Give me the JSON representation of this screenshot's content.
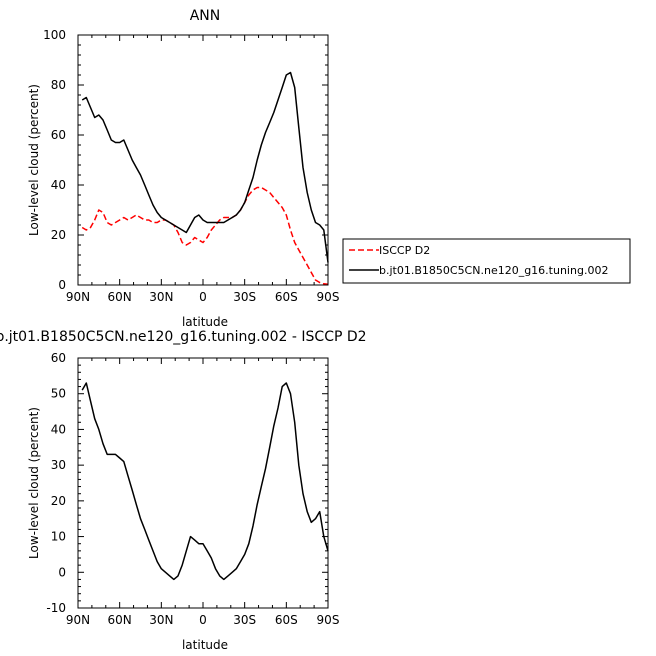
{
  "chart_data": [
    {
      "type": "line",
      "title": "ANN",
      "xlabel": "latitude",
      "ylabel": "Low-level cloud (percent)",
      "xlim": [
        -90,
        90
      ],
      "ylim": [
        0,
        100
      ],
      "xticks": [
        -90,
        -60,
        -30,
        0,
        30,
        60,
        90
      ],
      "xtick_labels": [
        "90N",
        "60N",
        "30N",
        "0",
        "30S",
        "60S",
        "90S"
      ],
      "yticks": [
        0,
        20,
        40,
        60,
        80,
        100
      ],
      "ytick_labels": [
        "0",
        "20",
        "40",
        "60",
        "80",
        "100"
      ],
      "grid": false,
      "legend": "right",
      "series": [
        {
          "name": "ISCCP D2",
          "color": "#ff0000",
          "dash": "dashed",
          "x": [
            -87,
            -84,
            -81,
            -78,
            -75,
            -72,
            -69,
            -66,
            -63,
            -60,
            -57,
            -54,
            -51,
            -48,
            -45,
            -42,
            -39,
            -36,
            -33,
            -30,
            -27,
            -24,
            -21,
            -18,
            -15,
            -12,
            -9,
            -6,
            -3,
            0,
            3,
            6,
            9,
            12,
            15,
            18,
            21,
            24,
            27,
            30,
            33,
            36,
            39,
            42,
            45,
            48,
            51,
            54,
            57,
            60,
            63,
            66,
            69,
            72,
            75,
            78,
            81,
            84,
            87,
            90
          ],
          "y": [
            23,
            22,
            23,
            26,
            30,
            29,
            25,
            24,
            25,
            26,
            27,
            26,
            27,
            28,
            27,
            26,
            26,
            25,
            25,
            26,
            26,
            25,
            24,
            21,
            17,
            16,
            17,
            19,
            18,
            17,
            19,
            22,
            24,
            26,
            27,
            27,
            27,
            28,
            30,
            33,
            36,
            38,
            39,
            39,
            38,
            37,
            35,
            33,
            31,
            28,
            22,
            17,
            14,
            11,
            8,
            5,
            2,
            1,
            0.5,
            0.3
          ]
        },
        {
          "name": "b.jt01.B1850C5CN.ne120_g16.tuning.002",
          "color": "#000000",
          "dash": "solid",
          "x": [
            -87,
            -84,
            -81,
            -78,
            -75,
            -72,
            -69,
            -66,
            -63,
            -60,
            -57,
            -54,
            -51,
            -48,
            -45,
            -42,
            -39,
            -36,
            -33,
            -30,
            -27,
            -24,
            -21,
            -18,
            -15,
            -12,
            -9,
            -6,
            -3,
            0,
            3,
            6,
            9,
            12,
            15,
            18,
            21,
            24,
            27,
            30,
            33,
            36,
            39,
            42,
            45,
            48,
            51,
            54,
            57,
            60,
            63,
            66,
            69,
            72,
            75,
            78,
            81,
            84,
            87,
            90
          ],
          "y": [
            74,
            75,
            71,
            67,
            68,
            66,
            62,
            58,
            57,
            57,
            58,
            54,
            50,
            47,
            44,
            40,
            36,
            32,
            29,
            27,
            26,
            25,
            24,
            23,
            22,
            21,
            24,
            27,
            28,
            26,
            25,
            25,
            25,
            25,
            25,
            26,
            27,
            28,
            30,
            33,
            38,
            43,
            50,
            56,
            61,
            65,
            69,
            74,
            79,
            84,
            85,
            79,
            63,
            47,
            37,
            30,
            25,
            24,
            22,
            9
          ]
        }
      ]
    },
    {
      "type": "line",
      "title": "b.jt01.B1850C5CN.ne120_g16.tuning.002 - ISCCP D2",
      "xlabel": "latitude",
      "ylabel": "Low-level cloud (percent)",
      "xlim": [
        -90,
        90
      ],
      "ylim": [
        -10,
        60
      ],
      "xticks": [
        -90,
        -60,
        -30,
        0,
        30,
        60,
        90
      ],
      "xtick_labels": [
        "90N",
        "60N",
        "30N",
        "0",
        "30S",
        "60S",
        "90S"
      ],
      "yticks": [
        -10,
        0,
        10,
        20,
        30,
        40,
        50,
        60
      ],
      "ytick_labels": [
        "-10",
        "0",
        "10",
        "20",
        "30",
        "40",
        "50",
        "60"
      ],
      "grid": false,
      "series": [
        {
          "color": "#000000",
          "dash": "solid",
          "x": [
            -87,
            -84,
            -81,
            -78,
            -75,
            -72,
            -69,
            -66,
            -63,
            -60,
            -57,
            -54,
            -51,
            -48,
            -45,
            -42,
            -39,
            -36,
            -33,
            -30,
            -27,
            -24,
            -21,
            -18,
            -15,
            -12,
            -9,
            -6,
            -3,
            0,
            3,
            6,
            9,
            12,
            15,
            18,
            21,
            24,
            27,
            30,
            33,
            36,
            39,
            42,
            45,
            48,
            51,
            54,
            57,
            60,
            63,
            66,
            69,
            72,
            75,
            78,
            81,
            84,
            87,
            90
          ],
          "y": [
            51,
            53,
            48,
            43,
            40,
            36,
            33,
            33,
            33,
            32,
            31,
            27,
            23,
            19,
            15,
            12,
            9,
            6,
            3,
            1,
            0,
            -1,
            -2,
            -1,
            2,
            6,
            10,
            9,
            8,
            8,
            6,
            4,
            1,
            -1,
            -2,
            -1,
            0,
            1,
            3,
            5,
            8,
            13,
            19,
            24,
            29,
            35,
            41,
            46,
            52,
            53,
            50,
            42,
            30,
            22,
            17,
            14,
            15,
            17,
            10,
            6
          ]
        }
      ]
    }
  ]
}
